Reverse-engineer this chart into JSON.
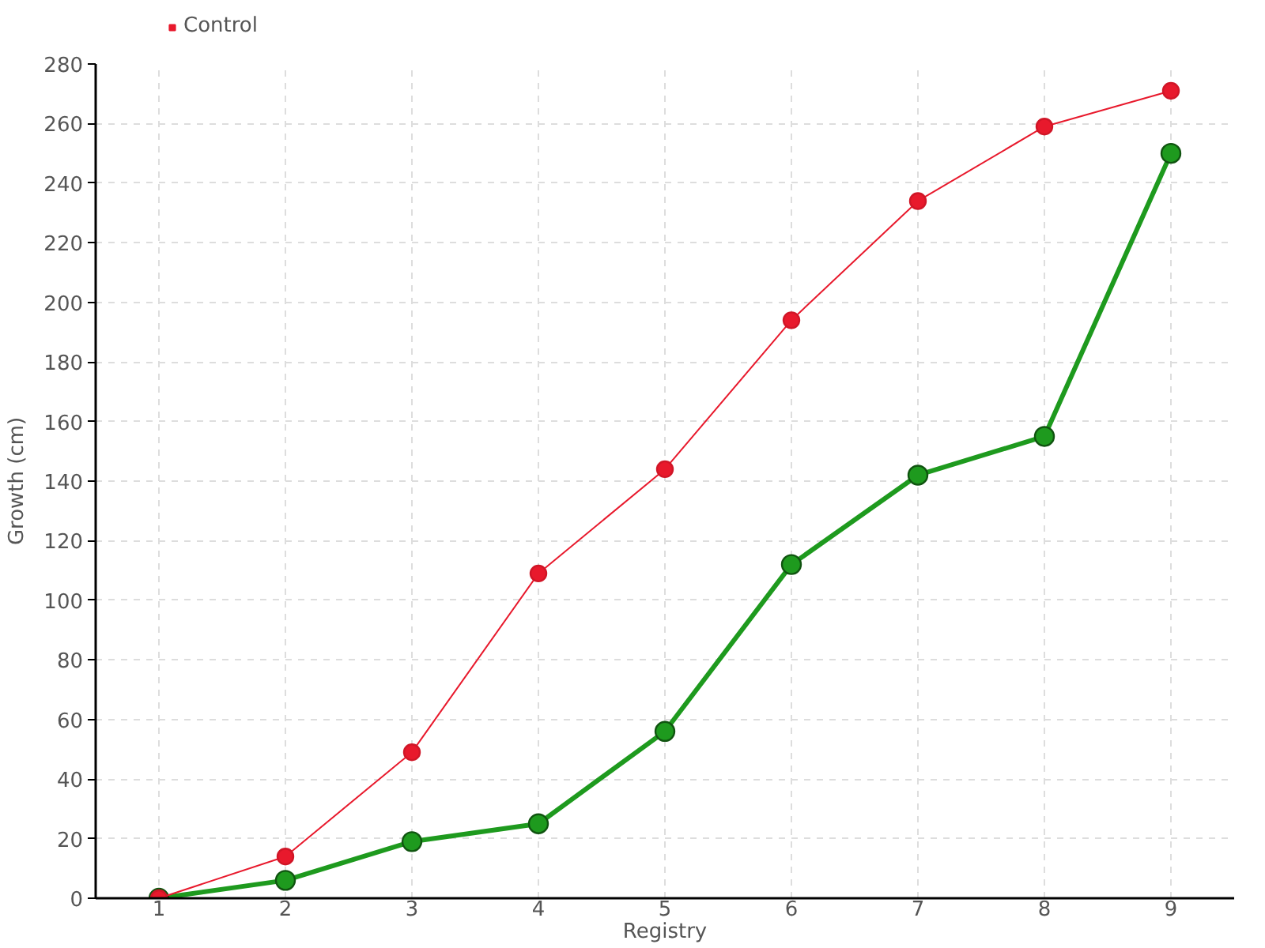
{
  "chart_data": {
    "type": "line",
    "xlabel": "Registry",
    "ylabel": "Growth (cm)",
    "categories": [
      "1",
      "2",
      "3",
      "4",
      "5",
      "6",
      "7",
      "8",
      "9"
    ],
    "ylim": [
      0,
      280
    ],
    "yticks": [
      0,
      20,
      40,
      60,
      80,
      100,
      120,
      140,
      160,
      180,
      200,
      220,
      240,
      260,
      280
    ],
    "grid": true,
    "legend": "top left",
    "marker": "circle",
    "series": [
      {
        "color": "#1e9a1e",
        "values": [
          0,
          6,
          19,
          25,
          56,
          112,
          142,
          155,
          250
        ]
      },
      {
        "name": "Control",
        "color": "#e8192c",
        "values": [
          0,
          14,
          49,
          109,
          144,
          194,
          234,
          259,
          271
        ]
      }
    ]
  }
}
